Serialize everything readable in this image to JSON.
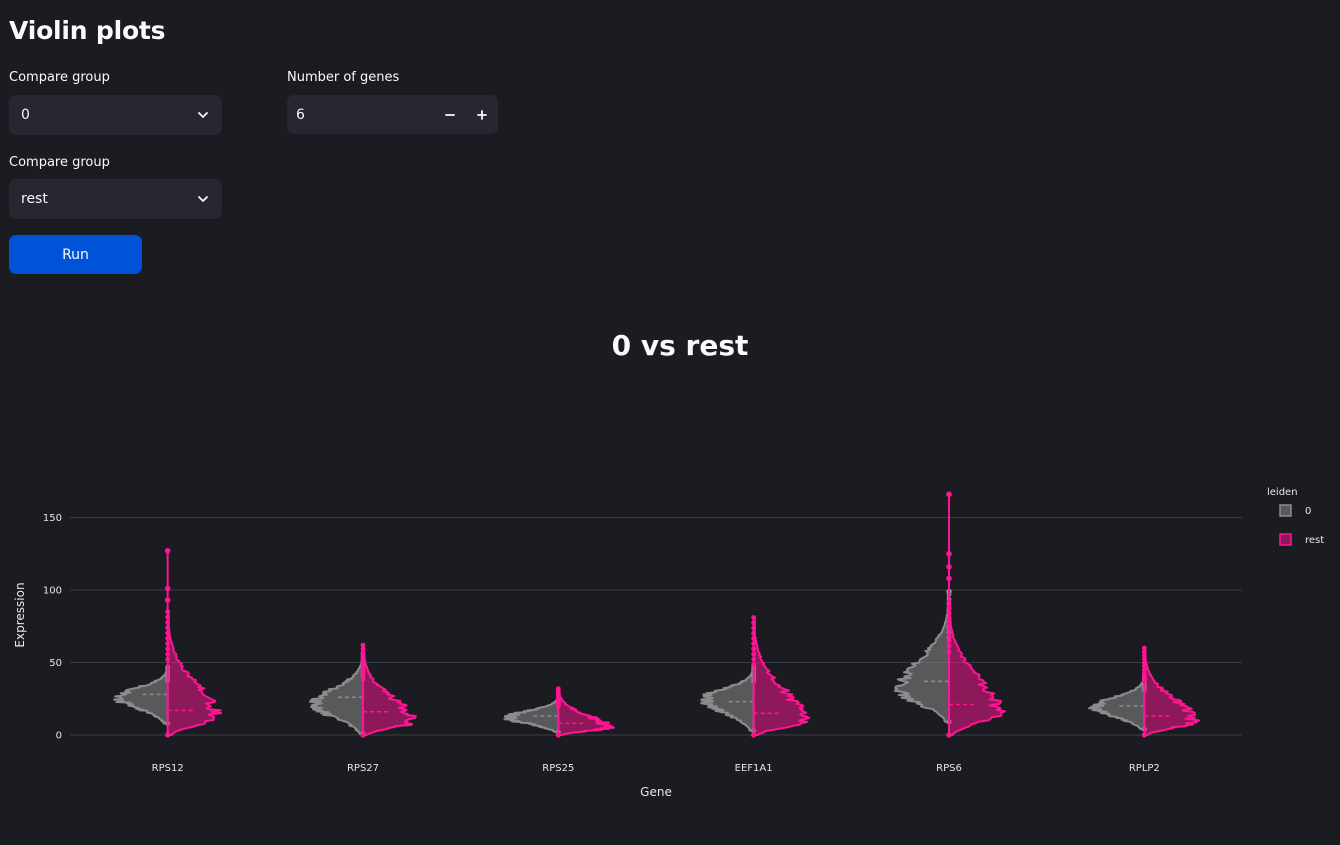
{
  "page": {
    "title": "Violin plots"
  },
  "controls": {
    "group1": {
      "label": "Compare group",
      "value": "0"
    },
    "group2": {
      "label": "Compare group",
      "value": "rest"
    },
    "num_genes": {
      "label": "Number of genes",
      "value": "6"
    },
    "run_label": "Run"
  },
  "icons": {
    "dropdown": "chevron-down-icon",
    "decrement": "minus-icon",
    "increment": "plus-icon"
  },
  "colors": {
    "group0": "#8c8c8c",
    "rest": "#ff1493",
    "background": "#1a1c21",
    "button": "#0052d6"
  },
  "chart_data": {
    "type": "violin",
    "title": "0 vs rest",
    "xlabel": "Gene",
    "ylabel": "Expression",
    "ylim": [
      -5,
      170
    ],
    "yticks": [
      0,
      50,
      100,
      150
    ],
    "grid": true,
    "legend": {
      "title": "leiden",
      "position": "right",
      "entries": [
        "0",
        "rest"
      ]
    },
    "categories": [
      "RPS12",
      "RPS27",
      "RPS25",
      "EEF1A1",
      "RPS6",
      "RPLP2"
    ],
    "series": [
      {
        "name": "0",
        "side": "left",
        "color": "#8c8c8c",
        "violins": [
          {
            "min": 8,
            "max": 47,
            "mean": 28,
            "mode": 26,
            "outliers": []
          },
          {
            "min": 1,
            "max": 56,
            "mean": 26,
            "mode": 21,
            "outliers": []
          },
          {
            "min": 2,
            "max": 27,
            "mean": 13,
            "mode": 12,
            "outliers": []
          },
          {
            "min": 3,
            "max": 47,
            "mean": 23,
            "mode": 25,
            "outliers": []
          },
          {
            "min": 9,
            "max": 97,
            "mean": 37,
            "mode": 31,
            "outliers": [
              99
            ]
          },
          {
            "min": 4,
            "max": 41,
            "mean": 20,
            "mode": 19,
            "outliers": []
          }
        ]
      },
      {
        "name": "rest",
        "side": "right",
        "color": "#ff1493",
        "violins": [
          {
            "min": 0,
            "max": 85,
            "mean": 17,
            "mode": 12,
            "outliers": [
              93,
              101,
              127
            ]
          },
          {
            "min": 0,
            "max": 62,
            "mean": 16,
            "mode": 9,
            "outliers": []
          },
          {
            "min": 0,
            "max": 32,
            "mean": 8,
            "mode": 5,
            "outliers": []
          },
          {
            "min": 0,
            "max": 81,
            "mean": 15,
            "mode": 9,
            "outliers": []
          },
          {
            "min": 0,
            "max": 92,
            "mean": 21,
            "mode": 15,
            "outliers": [
              108,
              116,
              125,
              166
            ]
          },
          {
            "min": 0,
            "max": 60,
            "mean": 13,
            "mode": 9,
            "outliers": []
          }
        ]
      }
    ]
  }
}
